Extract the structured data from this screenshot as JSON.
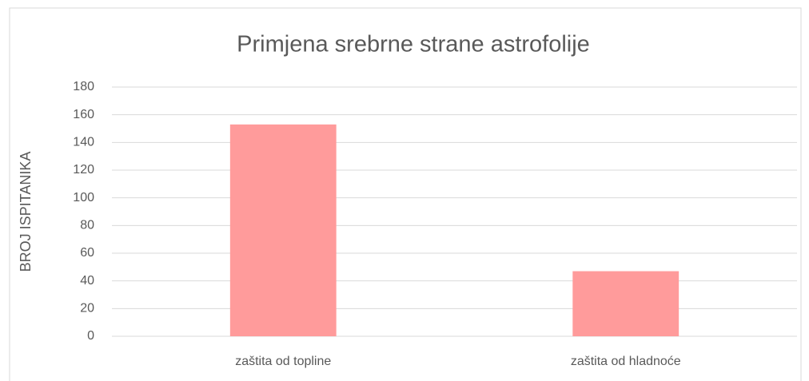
{
  "chart_data": {
    "type": "bar",
    "title": "Primjena srebrne strane astrofolije",
    "y_label": "BROJ ISPITANIKA",
    "categories": [
      "zaštita od topline",
      "zaštita od hladnoće"
    ],
    "values": [
      153,
      47
    ],
    "color": "#ff9b9b",
    "ylim": [
      0,
      180
    ],
    "yticks": [
      0,
      20,
      40,
      60,
      80,
      100,
      120,
      140,
      160,
      180
    ],
    "grid": true
  }
}
